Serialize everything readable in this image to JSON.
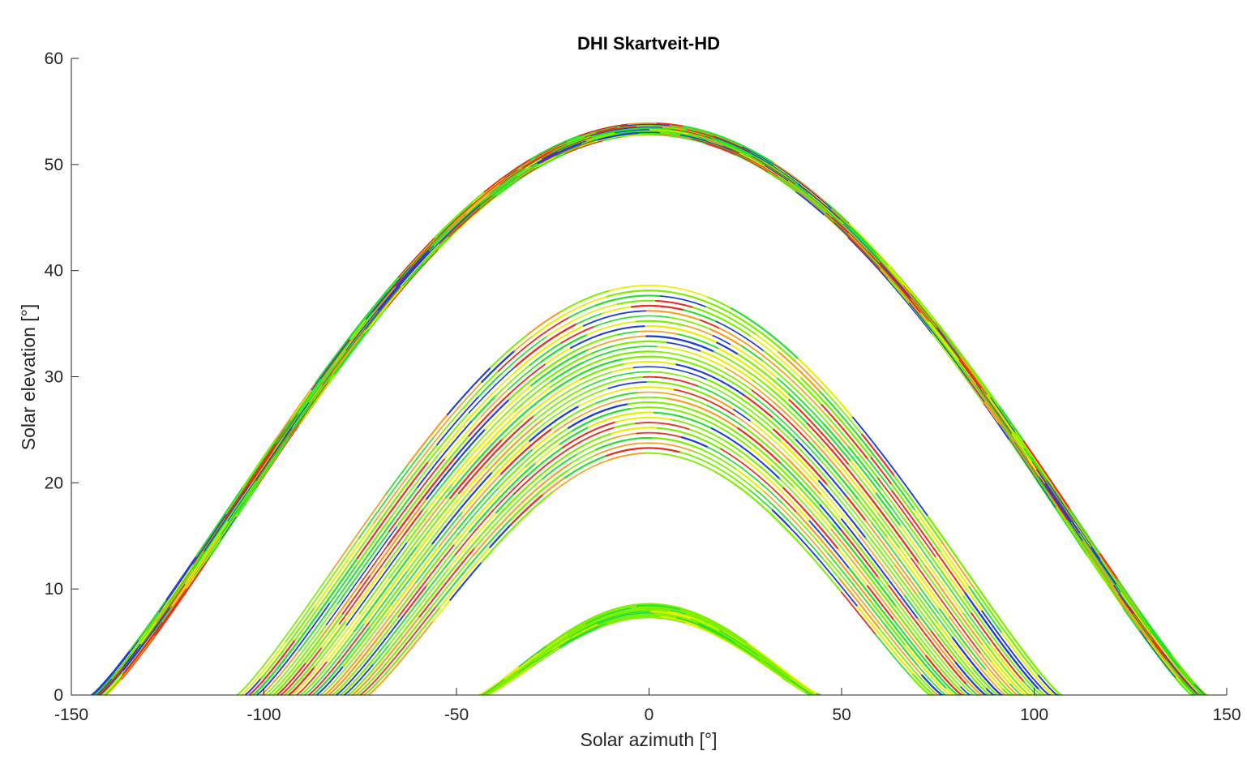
{
  "chart_data": {
    "type": "scatter",
    "title": "DHI Skartveit-HD",
    "xlabel": "Solar azimuth [°]",
    "ylabel": "Solar elevation [°]",
    "xlim": [
      -150,
      150
    ],
    "ylim": [
      0,
      60
    ],
    "xticks": [
      -150,
      -100,
      -50,
      0,
      50,
      100,
      150
    ],
    "yticks": [
      0,
      10,
      20,
      30,
      40,
      50,
      60
    ],
    "grid": false,
    "colors": {
      "blue": "#1f3fd6",
      "green": "#27e02f",
      "lime": "#7cf000",
      "yellow": "#e8f000",
      "orange": "#f5a020",
      "red": "#e83020"
    },
    "bands": [
      {
        "peak_elevation_range": [
          52.8,
          53.9
        ],
        "azimuth_at_horizon": 143,
        "colors": [
          "green",
          "lime",
          "blue",
          "red",
          "orange",
          "yellow"
        ]
      },
      {
        "peak_elevation_range": [
          22.8,
          38.6
        ],
        "azimuth_at_horizon_range": [
          73,
          107
        ],
        "colors": [
          "lime",
          "green",
          "yellow",
          "orange",
          "red",
          "blue"
        ]
      },
      {
        "peak_elevation_range": [
          7.3,
          8.6
        ],
        "azimuth_at_horizon": 43,
        "colors": [
          "lime",
          "green",
          "yellow"
        ]
      }
    ]
  }
}
